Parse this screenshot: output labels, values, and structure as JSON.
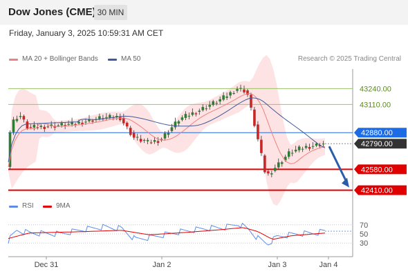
{
  "header": {
    "title": "Dow Jones (CME)",
    "timeframe": "30 MIN"
  },
  "datetime": "Friday, January 3, 2025 10:59:31 AM CET",
  "legend": {
    "bollinger": "MA 20 + Bollinger Bands",
    "ma50": "MA 50",
    "credit": "Research © 2025 Trading Central",
    "rsi": "RSI",
    "rsi_ma": "9MA"
  },
  "colors": {
    "candle_up": "#2e7d32",
    "candle_down": "#c62828",
    "bollinger_fill": "#fde3e3",
    "ma20": "#f08080",
    "ma50": "#3d5a99",
    "resistance": "#99c266",
    "support": "#e00000",
    "pivot": "#1e6be6",
    "last_price": "#333333",
    "rsi": "#5b8de8",
    "rsi_ma": "#e00000"
  },
  "chart_data": {
    "type": "candlestick",
    "ylim": [
      42340,
      43400
    ],
    "x_ticks": [
      "Dec 31",
      "Jan 2",
      "Jan 3",
      "Jan 4"
    ],
    "levels": [
      {
        "name": "resistance-2",
        "value": 43240,
        "label": "43240.00",
        "kind": "resistance"
      },
      {
        "name": "resistance-1",
        "value": 43110,
        "label": "43110.00",
        "kind": "resistance"
      },
      {
        "name": "pivot",
        "value": 42880,
        "label": "42880.00",
        "kind": "pivot"
      },
      {
        "name": "last-price",
        "value": 42790,
        "label": "42790.00",
        "kind": "last"
      },
      {
        "name": "support-1",
        "value": 42580,
        "label": "42580.00",
        "kind": "support"
      },
      {
        "name": "support-2",
        "value": 42410,
        "label": "42410.00",
        "kind": "support"
      }
    ],
    "close_path": [
      [
        "Dec 30 15:00",
        42600
      ],
      [
        "Dec 30 16:00",
        42950
      ],
      [
        "Dec 30 18:00",
        43030
      ],
      [
        "Dec 30 20:00",
        42920
      ],
      [
        "Dec 31 00:00",
        42930
      ],
      [
        "Dec 31 06:00",
        42950
      ],
      [
        "Dec 31 12:00",
        43000
      ],
      [
        "Dec 31 16:00",
        43010
      ],
      [
        "Dec 31 19:00",
        42840
      ],
      [
        "Dec 31 22:00",
        42800
      ],
      [
        "Jan 2 00:00",
        42820
      ],
      [
        "Jan 2 04:00",
        42990
      ],
      [
        "Jan 2 08:00",
        43060
      ],
      [
        "Jan 2 13:00",
        43160
      ],
      [
        "Jan 2 16:00",
        43240
      ],
      [
        "Jan 2 18:00",
        43220
      ],
      [
        "Jan 2 20:00",
        42880
      ],
      [
        "Jan 2 22:00",
        42520
      ],
      [
        "Jan 3 00:00",
        42600
      ],
      [
        "Jan 3 03:00",
        42720
      ],
      [
        "Jan 3 06:00",
        42760
      ],
      [
        "Jan 3 10:00",
        42790
      ]
    ],
    "forecast_arrow": {
      "from": 42790,
      "to": 42410
    },
    "rsi": {
      "levels": [
        70,
        50,
        30
      ],
      "rsi_path": [
        [
          "Dec 30 15:00",
          35
        ],
        [
          "Dec 30 17:00",
          58
        ],
        [
          "Dec 30 20:00",
          52
        ],
        [
          "Dec 31 03:00",
          50
        ],
        [
          "Dec 31 08:00",
          60
        ],
        [
          "Dec 31 12:00",
          65
        ],
        [
          "Dec 31 16:00",
          62
        ],
        [
          "Dec 31 19:00",
          38
        ],
        [
          "Dec 31 22:00",
          42
        ],
        [
          "Jan 2 04:00",
          55
        ],
        [
          "Jan 2 09:00",
          62
        ],
        [
          "Jan 2 13:00",
          64
        ],
        [
          "Jan 2 16:00",
          72
        ],
        [
          "Jan 2 18:00",
          60
        ],
        [
          "Jan 2 20:00",
          40
        ],
        [
          "Jan 2 22:00",
          28
        ],
        [
          "Jan 3 00:00",
          44
        ],
        [
          "Jan 3 04:00",
          50
        ],
        [
          "Jan 3 08:00",
          52
        ],
        [
          "Jan 3 10:00",
          56
        ]
      ],
      "ma_path": [
        [
          "Dec 30 15:00",
          40
        ],
        [
          "Dec 30 20:00",
          52
        ],
        [
          "Dec 31 08:00",
          55
        ],
        [
          "Dec 31 16:00",
          58
        ],
        [
          "Dec 31 22:00",
          48
        ],
        [
          "Jan 2 06:00",
          54
        ],
        [
          "Jan 2 13:00",
          60
        ],
        [
          "Jan 2 17:00",
          64
        ],
        [
          "Jan 2 20:00",
          55
        ],
        [
          "Jan 2 23:00",
          38
        ],
        [
          "Jan 3 03:00",
          46
        ],
        [
          "Jan 3 10:00",
          52
        ]
      ]
    }
  }
}
